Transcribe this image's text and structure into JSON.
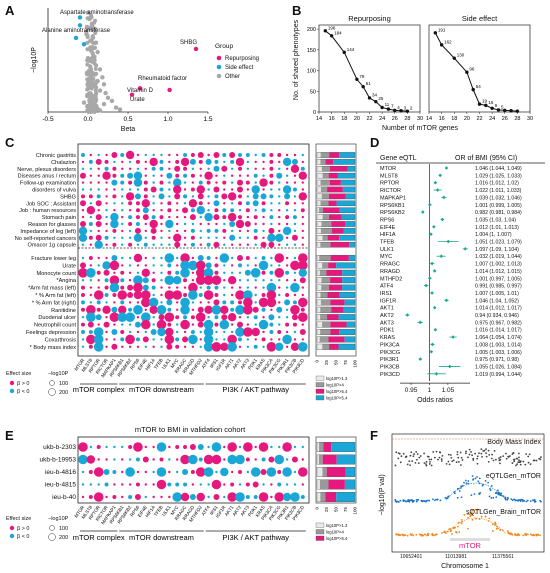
{
  "colors": {
    "pos": "#e6187e",
    "neg": "#1aa7d8",
    "other": "#a8a8a8",
    "forest": "#1aa88f",
    "bin_light": "#e9e9e9",
    "bin_mid": "#999999",
    "bin_dark": "#2a2a2a"
  },
  "panels": {
    "A": {
      "letter": "A",
      "ylabel": "−log10P",
      "xlabel": "Beta",
      "legend": {
        "title": "Group",
        "items": [
          "Repurposing",
          "Side effect",
          "Other"
        ]
      },
      "annotations": [
        "Aspartate aminotransferase",
        "Alanine aminotransferase",
        "SHBG",
        "Vitamin D",
        "Rheumatoid factor",
        "Urate"
      ]
    },
    "B": {
      "letter": "B",
      "ylabel": "No. of shared phenotypes",
      "xlabel": "Number of mTOR genes",
      "sub_titles": [
        "Repurposing",
        "Side effect"
      ]
    },
    "C": {
      "letter": "C",
      "rows_top": [
        "Chronic gastritis",
        "Chalazion",
        "Nerve, plexus disorders",
        "Diseases  anus / rectum",
        "Follow-up examination",
        "disorders of vulva",
        "SHBG",
        "Job SOC : Assistant",
        "Job : human resources",
        "Stomach pain",
        "Reason for glasses",
        "Impedance of leg (left)",
        "No self-reported cancers",
        "Omacor 1g capsule"
      ],
      "rows_bottom": [
        "Fracture lower leg",
        "Urate",
        "Monocyte count",
        "*Angina",
        "*Arm fat mass (left)",
        "* % Arm fat (left)",
        "* % Arm fat (right)",
        "Ranitidine",
        "Duodenal ulcer",
        "Neutrophill count",
        "Feelings depression",
        "Coxarthrosis",
        "* Body mass index"
      ],
      "legend": {
        "effect_title": "Effect size",
        "p_title": "−log10P",
        "beta_pos": "β > 0",
        "beta_neg": "β < 0",
        "sizes": [
          "100",
          "200"
        ]
      },
      "bin_labels": [
        "log10P>1.3",
        "log10P>4",
        "log10P>5.4",
        "log10P>5.4"
      ],
      "bar_axis": [
        "0",
        "25",
        "50",
        "75",
        "100"
      ]
    },
    "D": {
      "letter": "D",
      "col1": "Gene eQTL",
      "col2": "OR of BMI (95% CI)",
      "xlabel": "Odds ratios",
      "xticks": [
        "0.95",
        "1",
        "1.05"
      ]
    },
    "E": {
      "letter": "E",
      "title": "mTOR to BMI in validation cohort",
      "legend": {
        "effect_title": "Effect size",
        "p_title": "−log10P",
        "beta_pos": "β > 0",
        "beta_neg": "β < 0",
        "sizes": [
          "100",
          "200"
        ]
      },
      "bin_labels": [
        "log10P>1.3",
        "log10P>4",
        "log10P>5.4"
      ],
      "bar_axis": [
        "0",
        "25",
        "50",
        "75",
        "100"
      ]
    },
    "F": {
      "letter": "F",
      "ylabel": "−log10(P val)",
      "xlabel": "Chromosome 1",
      "tracks": [
        "Body Mass Index",
        "eQTLGen_mTOR",
        "sQTLGen_Brain_mTOR"
      ],
      "gene_label": "mTOR",
      "positions": [
        "10652401",
        "11013981",
        "11375561"
      ]
    }
  },
  "genes": [
    "MTOR",
    "MLST8",
    "RPTOR",
    "RICTOR",
    "MAPKAP1",
    "RPS6KB1",
    "RPS6KB2",
    "RPS6",
    "EIF4E",
    "HIF1A",
    "TFEB",
    "ULK1",
    "MYC",
    "RRAGC",
    "RRAGD",
    "MTHFD2",
    "ATF4",
    "IRS1",
    "IGF1R",
    "AKT1",
    "AKT2",
    "AKT3",
    "PDK1",
    "KRAS",
    "PIK3CA",
    "PIK3CG",
    "PIK3R1",
    "PIK3CB",
    "PIK3CD"
  ],
  "groups": [
    "mTOR complex",
    "mTOR downstream",
    "PI3K / AKT pathway"
  ],
  "cohorts": [
    "ukb-b-2303",
    "ukb-b-19953",
    "ieu-b-4816",
    "ieu-b-4815",
    "ieu-b-40"
  ],
  "chart_data": [
    {
      "type": "scatter",
      "panel": "A",
      "xlabel": "Beta",
      "ylabel": "−log10P",
      "xlim": [
        -0.5,
        1.5
      ],
      "xticks": [
        -0.5,
        0.0,
        0.5,
        1.0,
        1.5
      ],
      "series": [
        {
          "name": "Repurposing",
          "points": [
            [
              1.35,
              200
            ],
            [
              0.65,
              75
            ],
            [
              1.02,
              70
            ],
            [
              0.55,
              55
            ]
          ]
        },
        {
          "name": "Side effect",
          "points": [
            [
              -0.1,
              300
            ],
            [
              -0.1,
              275
            ],
            [
              -0.15,
              235
            ],
            [
              -0.05,
              215
            ]
          ]
        },
        {
          "name": "Other",
          "points": [
            [
              0.0,
              315
            ],
            [
              0.02,
              295
            ],
            [
              0.05,
              270
            ],
            [
              -0.02,
              255
            ],
            [
              0.06,
              240
            ],
            [
              0.1,
              220
            ],
            [
              0.03,
              205
            ],
            [
              0.12,
              190
            ],
            [
              0.08,
              175
            ],
            [
              0.05,
              160
            ],
            [
              0.1,
              148
            ],
            [
              0.15,
              135
            ],
            [
              0.07,
              122
            ],
            [
              0.18,
              110
            ],
            [
              0.12,
              98
            ],
            [
              0.2,
              88
            ],
            [
              0.1,
              78
            ],
            [
              0.15,
              68
            ],
            [
              0.22,
              60
            ],
            [
              0.05,
              52
            ],
            [
              0.25,
              45
            ],
            [
              0.1,
              40
            ],
            [
              0.3,
              35
            ],
            [
              -0.05,
              30
            ],
            [
              0.2,
              25
            ],
            [
              0.02,
              18
            ],
            [
              0.35,
              14
            ],
            [
              0.12,
              10
            ],
            [
              0.4,
              8
            ],
            [
              0.15,
              5
            ]
          ]
        }
      ]
    },
    {
      "type": "line",
      "panel": "B",
      "title": "Repurposing",
      "xlabel": "Number of mTOR genes",
      "ylabel": "No. of shared phenotypes",
      "xlim": [
        14,
        30
      ],
      "ylim": [
        0,
        210
      ],
      "xticks": [
        14,
        16,
        18,
        20,
        22,
        24,
        26,
        28,
        30
      ],
      "yticks": [
        0,
        50,
        100,
        150,
        200
      ],
      "x": [
        15,
        16,
        18,
        20,
        21,
        22,
        23,
        24,
        25,
        26,
        27,
        28
      ],
      "y": [
        196,
        184,
        144,
        79,
        61,
        34,
        25,
        11,
        7,
        4,
        3,
        2
      ],
      "point_labels": [
        "196",
        "184",
        "144",
        "79",
        "61",
        "34",
        "25",
        "11",
        "7",
        "4",
        "3",
        "2"
      ]
    },
    {
      "type": "line",
      "panel": "B",
      "title": "Side effect",
      "xlabel": "Number of mTOR genes",
      "xlim": [
        14,
        30
      ],
      "ylim": [
        0,
        210
      ],
      "xticks": [
        14,
        16,
        18,
        20,
        22,
        24,
        26,
        28,
        30
      ],
      "x": [
        15,
        16,
        18,
        20,
        21,
        22,
        23,
        24,
        25,
        26,
        27,
        28
      ],
      "y": [
        191,
        162,
        130,
        96,
        54,
        19,
        16,
        9,
        5,
        4,
        3,
        2
      ],
      "point_labels": [
        "191",
        "162",
        "130",
        "96",
        "54",
        "19",
        "16",
        "9",
        "5",
        "",
        "",
        ""
      ]
    },
    {
      "type": "table",
      "panel": "D",
      "title": "OR of BMI (95% CI)",
      "rows": [
        [
          "MTOR",
          "1.046 (1.044, 1.049)"
        ],
        [
          "MLST8",
          "1.029 (1.025, 1.033)"
        ],
        [
          "RPTOR",
          "1.016 (1.012, 1.02)"
        ],
        [
          "RICTOR",
          "1.022 (1.011, 1.033)"
        ],
        [
          "MAPKAP1",
          "1.039 (1.032, 1.046)"
        ],
        [
          "RPS6KB1",
          "1.001 (0.999, 1.005)"
        ],
        [
          "RPS6KB2",
          "0.982 (0.981, 0.984)"
        ],
        [
          "RPS6",
          "1.035 (1.03, 1.04)"
        ],
        [
          "EIF4E",
          "1.012 (1.01, 1.013)"
        ],
        [
          "HIF1A",
          "1.004 (1, 1.007)"
        ],
        [
          "TFEB",
          "1.051 (1.023, 1.079)"
        ],
        [
          "ULK1",
          "1.097 (1.09, 1.104)"
        ],
        [
          "MYC",
          "1.032 (1.019, 1.044)"
        ],
        [
          "RRAGC",
          "1.007 (1.002, 1.013)"
        ],
        [
          "RRAGD",
          "1.014 (1.012, 1.015)"
        ],
        [
          "MTHFD2",
          "1.001 (0.997, 1.005)"
        ],
        [
          "ATF4",
          "0.991 (0.985, 0.997)"
        ],
        [
          "IRS1",
          "1.007 (1.005, 1.01)"
        ],
        [
          "IGF1R",
          "1.046 (1.04, 1.052)"
        ],
        [
          "AKT1",
          "1.014 (1.012, 1.017)"
        ],
        [
          "AKT2",
          "0.94 (0.934, 0.946)"
        ],
        [
          "AKT3",
          "0.975 (0.967, 0.982)"
        ],
        [
          "PDK1",
          "1.016 (1.014, 1.017)"
        ],
        [
          "KRAS",
          "1.064 (1.054, 1.074)"
        ],
        [
          "PIK3CA",
          "1.008 (1.003, 1.014)"
        ],
        [
          "PIK3CG",
          "1.005 (1.003, 1.006)"
        ],
        [
          "PIK3R1",
          "0.975 (0.971, 0.98)"
        ],
        [
          "PIK3CB",
          "1.055 (1.026, 1.084)"
        ],
        [
          "PIK3CD",
          "1.019 (0.994, 1.044)"
        ]
      ],
      "or": [
        1.046,
        1.029,
        1.016,
        1.022,
        1.039,
        1.001,
        0.982,
        1.035,
        1.012,
        1.004,
        1.051,
        1.097,
        1.032,
        1.007,
        1.014,
        1.001,
        0.991,
        1.007,
        1.046,
        1.014,
        0.94,
        0.975,
        1.016,
        1.064,
        1.008,
        1.005,
        0.975,
        1.055,
        1.019
      ],
      "lo": [
        1.044,
        1.025,
        1.012,
        1.011,
        1.032,
        0.999,
        0.981,
        1.03,
        1.01,
        1,
        1.023,
        1.09,
        1.019,
        1.002,
        1.012,
        0.997,
        0.985,
        1.005,
        1.04,
        1.012,
        0.934,
        0.967,
        1.014,
        1.054,
        1.003,
        1.003,
        0.971,
        1.026,
        0.994
      ],
      "hi": [
        1.049,
        1.033,
        1.02,
        1.033,
        1.046,
        1.005,
        0.984,
        1.04,
        1.013,
        1.007,
        1.079,
        1.104,
        1.044,
        1.013,
        1.015,
        1.005,
        0.997,
        1.01,
        1.052,
        1.017,
        0.946,
        0.982,
        1.017,
        1.074,
        1.014,
        1.006,
        0.98,
        1.084,
        1.044
      ],
      "xlim": [
        0.92,
        1.11
      ],
      "xticks": [
        0.95,
        1,
        1.05
      ]
    }
  ]
}
